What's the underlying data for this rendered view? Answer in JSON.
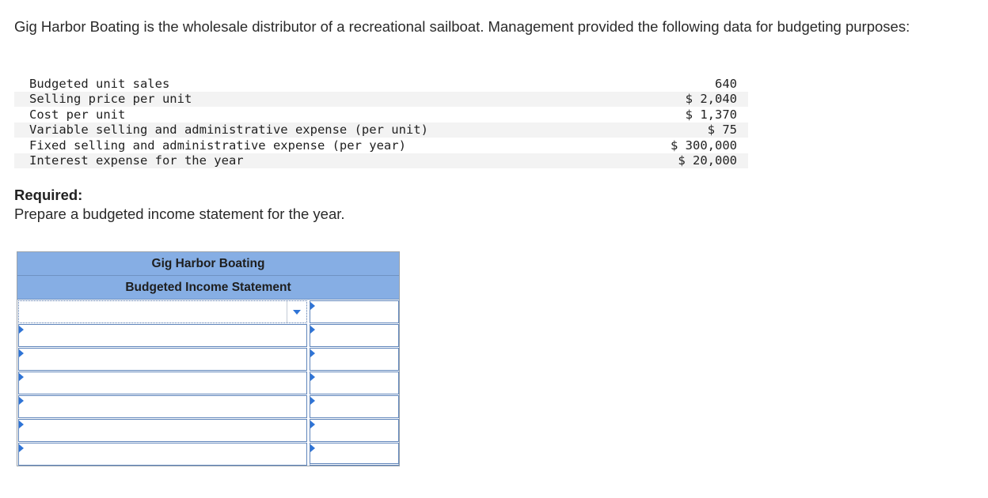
{
  "intro": "Gig Harbor Boating is the wholesale distributor of a recreational sailboat. Management provided the following data for budgeting purposes:",
  "data_rows": [
    {
      "label": "Budgeted unit sales",
      "value": "640"
    },
    {
      "label": "Selling price per unit",
      "value": "$ 2,040"
    },
    {
      "label": "Cost per unit",
      "value": "$ 1,370"
    },
    {
      "label": "Variable selling and administrative expense (per unit)",
      "value": "$ 75"
    },
    {
      "label": "Fixed selling and administrative expense (per year)",
      "value": "$ 300,000"
    },
    {
      "label": "Interest expense for the year",
      "value": "$ 20,000"
    }
  ],
  "required": {
    "heading": "Required:",
    "text": "Prepare a budgeted income statement for the year."
  },
  "statement": {
    "company": "Gig Harbor Boating",
    "title": "Budgeted Income Statement",
    "rows": [
      {
        "label": "",
        "amount": ""
      },
      {
        "label": "",
        "amount": ""
      },
      {
        "label": "",
        "amount": ""
      },
      {
        "label": "",
        "amount": ""
      },
      {
        "label": "",
        "amount": ""
      },
      {
        "label": "",
        "amount": ""
      },
      {
        "label": "",
        "amount": ""
      }
    ]
  }
}
